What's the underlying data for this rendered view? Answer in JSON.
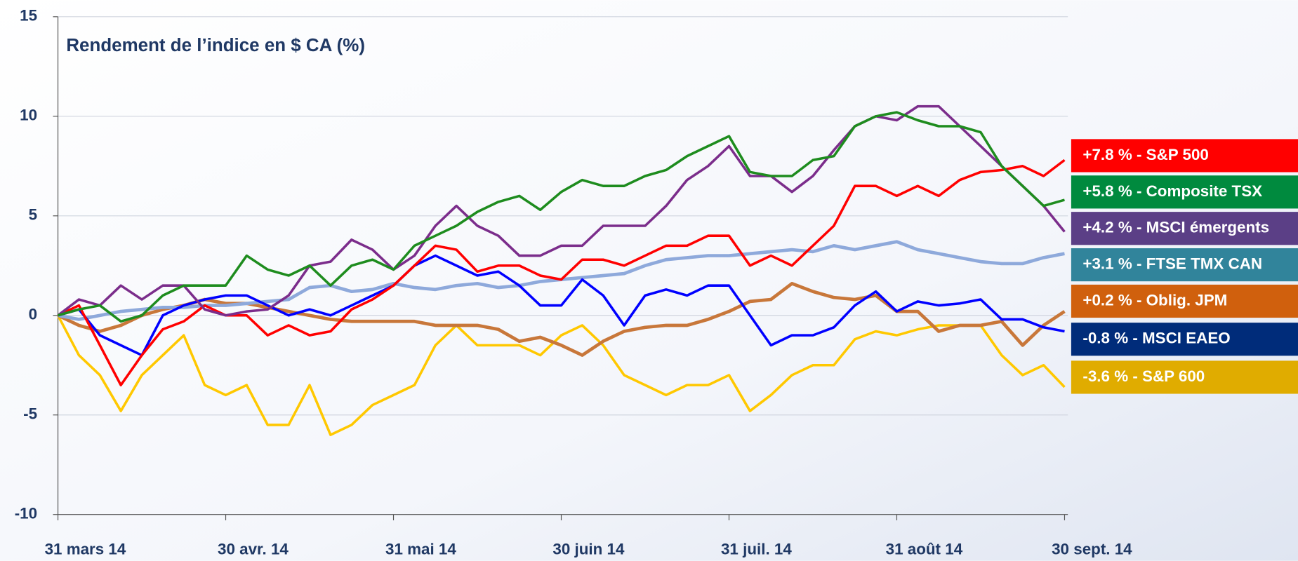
{
  "chart_data": {
    "type": "line",
    "title": "Rendement de l’indice en $ CA (%)",
    "categories": [
      "31 mars 14",
      null,
      null,
      null,
      null,
      null,
      null,
      null,
      "30 avr. 14",
      null,
      null,
      null,
      null,
      null,
      null,
      null,
      "31 mai 14",
      null,
      null,
      null,
      null,
      null,
      null,
      null,
      "30 juin 14",
      null,
      null,
      null,
      null,
      null,
      null,
      null,
      "31 juil. 14",
      null,
      null,
      null,
      null,
      null,
      null,
      null,
      "31 août 14",
      null,
      null,
      null,
      null,
      null,
      null,
      null,
      "30 sept. 14"
    ],
    "ylim": [
      -10,
      15
    ],
    "yticks": [
      -10,
      -5,
      0,
      5,
      10,
      15
    ],
    "grid": true,
    "series": [
      {
        "name": "S&P 500",
        "return_label": "+7.8 %",
        "color": "#ff0000",
        "legend_color": "#ff0000",
        "values": [
          0,
          0.5,
          -1.5,
          -3.5,
          -2,
          -0.7,
          -0.3,
          0.5,
          0,
          0,
          -1,
          -0.5,
          -1,
          -0.8,
          0.3,
          0.8,
          1.5,
          2.5,
          3.5,
          3.3,
          2.2,
          2.5,
          2.5,
          2,
          1.8,
          2.8,
          2.8,
          2.5,
          3,
          3.5,
          3.5,
          4,
          4,
          2.5,
          3,
          2.5,
          3.5,
          4.5,
          6.5,
          6.5,
          6,
          6.5,
          6,
          6.8,
          7.2,
          7.3,
          7.5,
          7,
          7.8
        ]
      },
      {
        "name": "Composite TSX",
        "return_label": "+5.8 %",
        "color": "#1e8c1e",
        "legend_color": "#008a3e",
        "values": [
          0,
          0.3,
          0.5,
          -0.3,
          0,
          1,
          1.5,
          1.5,
          1.5,
          3,
          2.3,
          2,
          2.5,
          1.5,
          2.5,
          2.8,
          2.3,
          3.5,
          4,
          4.5,
          5.2,
          5.7,
          6,
          5.3,
          6.2,
          6.8,
          6.5,
          6.5,
          7,
          7.3,
          8,
          8.5,
          9,
          7.2,
          7,
          7,
          7.8,
          8,
          9.5,
          10,
          10.2,
          9.8,
          9.5,
          9.5,
          9.2,
          7.5,
          6.5,
          5.5,
          5.8
        ]
      },
      {
        "name": "MSCI émergents",
        "return_label": "+4.2 %",
        "color": "#7b2d8b",
        "legend_color": "#5b3f86",
        "values": [
          0,
          0.8,
          0.5,
          1.5,
          0.8,
          1.5,
          1.5,
          0.3,
          0,
          0.2,
          0.3,
          1,
          2.5,
          2.7,
          3.8,
          3.3,
          2.3,
          3,
          4.5,
          5.5,
          4.5,
          4,
          3,
          3,
          3.5,
          3.5,
          4.5,
          4.5,
          4.5,
          5.5,
          6.8,
          7.5,
          8.5,
          7,
          7,
          6.2,
          7,
          8.3,
          9.5,
          10,
          9.8,
          10.5,
          10.5,
          9.5,
          8.5,
          7.5,
          6.5,
          5.5,
          4.2
        ]
      },
      {
        "name": "FTSE TMX CAN",
        "return_label": "+3.1 %",
        "color": "#8ea9db",
        "legend_color": "#31849b",
        "width": 4,
        "values": [
          0,
          -0.2,
          0,
          0.2,
          0.3,
          0.4,
          0.4,
          0.5,
          0.5,
          0.6,
          0.7,
          0.8,
          1.4,
          1.5,
          1.2,
          1.3,
          1.6,
          1.4,
          1.3,
          1.5,
          1.6,
          1.4,
          1.5,
          1.7,
          1.8,
          1.9,
          2,
          2.1,
          2.5,
          2.8,
          2.9,
          3,
          3,
          3.1,
          3.2,
          3.3,
          3.2,
          3.5,
          3.3,
          3.5,
          3.7,
          3.3,
          3.1,
          2.9,
          2.7,
          2.6,
          2.6,
          2.9,
          3.1
        ]
      },
      {
        "name": "Oblig. JPM",
        "return_label": "+0.2 %",
        "color": "#c8773a",
        "legend_color": "#d0600d",
        "width": 4,
        "values": [
          0,
          -0.5,
          -0.8,
          -0.5,
          0,
          0.3,
          0.5,
          0.8,
          0.6,
          0.6,
          0.4,
          0.2,
          0,
          -0.2,
          -0.3,
          -0.3,
          -0.3,
          -0.3,
          -0.5,
          -0.5,
          -0.5,
          -0.7,
          -1.3,
          -1.1,
          -1.5,
          -2,
          -1.3,
          -0.8,
          -0.6,
          -0.5,
          -0.5,
          -0.2,
          0.2,
          0.7,
          0.8,
          1.6,
          1.2,
          0.9,
          0.8,
          1,
          0.2,
          0.2,
          -0.8,
          -0.5,
          -0.5,
          -0.3,
          -1.5,
          -0.5,
          0.2
        ]
      },
      {
        "name": "MSCI EAEO",
        "return_label": "-0.8 %",
        "color": "#0000ff",
        "legend_color": "#002c7a",
        "values": [
          0,
          0.3,
          -1,
          -1.5,
          -2,
          0,
          0.5,
          0.8,
          1,
          1,
          0.5,
          0,
          0.3,
          0,
          0.5,
          1,
          1.5,
          2.5,
          3,
          2.5,
          2,
          2.2,
          1.5,
          0.5,
          0.5,
          1.8,
          1,
          -0.5,
          1,
          1.3,
          1,
          1.5,
          1.5,
          0,
          -1.5,
          -1,
          -1,
          -0.6,
          0.5,
          1.2,
          0.2,
          0.7,
          0.5,
          0.6,
          0.8,
          -0.2,
          -0.2,
          -0.6,
          -0.8
        ]
      },
      {
        "name": "S&P 600",
        "return_label": "-3.6 %",
        "color": "#ffc800",
        "legend_color": "#e0ac00",
        "values": [
          0,
          -2,
          -3,
          -4.8,
          -3,
          -2,
          -1,
          -3.5,
          -4,
          -3.5,
          -5.5,
          -5.5,
          -3.5,
          -6,
          -5.5,
          -4.5,
          -4,
          -3.5,
          -1.5,
          -0.5,
          -1.5,
          -1.5,
          -1.5,
          -2,
          -1,
          -0.5,
          -1.5,
          -3,
          -3.5,
          -4,
          -3.5,
          -3.5,
          -3,
          -4.8,
          -4,
          -3,
          -2.5,
          -2.5,
          -1.2,
          -0.8,
          -1,
          -0.7,
          -0.5,
          -0.5,
          -0.5,
          -2,
          -3,
          -2.5,
          -3.6
        ]
      }
    ]
  }
}
